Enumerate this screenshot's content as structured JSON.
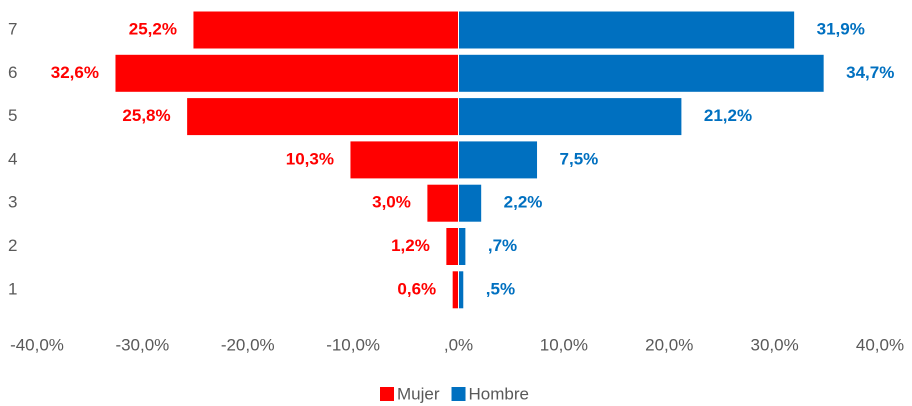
{
  "chart_data": {
    "type": "bar",
    "orientation": "horizontal",
    "categories": [
      "1",
      "2",
      "3",
      "4",
      "5",
      "6",
      "7"
    ],
    "series": [
      {
        "name": "Mujer",
        "color": "#ff0000",
        "values": [
          -0.6,
          -1.2,
          -3.0,
          -10.3,
          -25.8,
          -32.6,
          -25.2
        ],
        "value_labels": [
          "0,6%",
          "1,2%",
          "3,0%",
          "10,3%",
          "25,8%",
          "32,6%",
          "25,2%"
        ]
      },
      {
        "name": "Hombre",
        "color": "#0070c0",
        "values": [
          0.5,
          0.7,
          2.2,
          7.5,
          21.2,
          34.7,
          31.9
        ],
        "value_labels": [
          ",5%",
          ",7%",
          "2,2%",
          "7,5%",
          "21,2%",
          "34,7%",
          "31,9%"
        ]
      }
    ],
    "xlim": [
      -40,
      40
    ],
    "xticks": [
      {
        "value": -40,
        "label": "-40,0%"
      },
      {
        "value": -30,
        "label": "-30,0%"
      },
      {
        "value": -20,
        "label": "-20,0%"
      },
      {
        "value": -10,
        "label": "-10,0%"
      },
      {
        "value": 0,
        "label": ",0%"
      },
      {
        "value": 10,
        "label": "10,0%"
      },
      {
        "value": 20,
        "label": "20,0%"
      },
      {
        "value": 30,
        "label": "30,0%"
      },
      {
        "value": 40,
        "label": "40,0%"
      }
    ],
    "grid": false,
    "legend": "bottom"
  }
}
